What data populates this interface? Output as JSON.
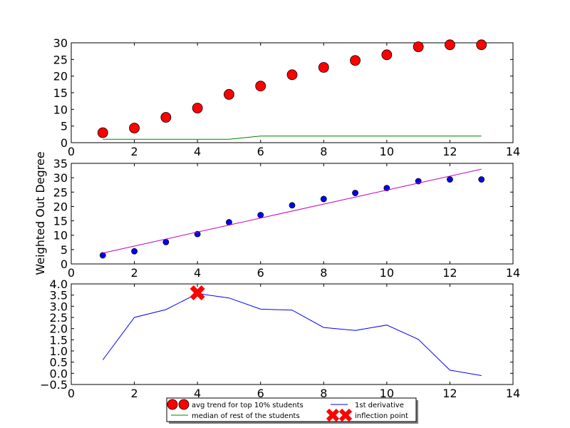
{
  "chart_data": [
    {
      "type": "scatter",
      "xlim": [
        0,
        14
      ],
      "ylim": [
        0,
        30
      ],
      "xticks": [
        "0",
        "2",
        "4",
        "6",
        "8",
        "10",
        "12",
        "14"
      ],
      "yticks": [
        "0",
        "5",
        "10",
        "15",
        "20",
        "25",
        "30"
      ],
      "grid": false,
      "series": [
        {
          "name": "avg trend for top 10% students",
          "type": "scatter",
          "color": "#ff0000",
          "x": [
            1,
            2,
            3,
            4,
            5,
            6,
            7,
            8,
            9,
            10,
            11,
            12,
            13
          ],
          "y": [
            3.0,
            4.4,
            7.6,
            10.4,
            14.5,
            17.0,
            20.4,
            22.6,
            24.7,
            26.4,
            28.8,
            29.4,
            29.4
          ]
        },
        {
          "name": "median of rest of the students",
          "type": "line",
          "color": "#008000",
          "x": [
            1,
            2,
            3,
            4,
            5,
            6,
            7,
            8,
            9,
            10,
            11,
            12,
            13
          ],
          "y": [
            1,
            1,
            1,
            1,
            1,
            2,
            2,
            2,
            2,
            2,
            2,
            2,
            2
          ]
        }
      ]
    },
    {
      "type": "scatter",
      "ylabel": "Weighted Out Degree",
      "xlim": [
        0,
        14
      ],
      "ylim": [
        0,
        35
      ],
      "xticks": [
        "0",
        "2",
        "4",
        "6",
        "8",
        "10",
        "12",
        "14"
      ],
      "yticks": [
        "0",
        "5",
        "10",
        "15",
        "20",
        "25",
        "30",
        "35"
      ],
      "grid": false,
      "series": [
        {
          "type": "scatter",
          "color": "#0000ff",
          "x": [
            1,
            2,
            3,
            4,
            5,
            6,
            7,
            8,
            9,
            10,
            11,
            12,
            13
          ],
          "y": [
            3.0,
            4.4,
            7.6,
            10.4,
            14.5,
            17.0,
            20.4,
            22.6,
            24.7,
            26.4,
            28.8,
            29.4,
            29.4
          ]
        },
        {
          "type": "line",
          "color": "#bf00bf",
          "x": [
            1,
            13
          ],
          "y": [
            3.8,
            33.0
          ]
        }
      ]
    },
    {
      "type": "line",
      "xlim": [
        0,
        14
      ],
      "ylim": [
        -0.5,
        4.0
      ],
      "xticks": [
        "0",
        "2",
        "4",
        "6",
        "8",
        "10",
        "12",
        "14"
      ],
      "yticks": [
        "−0.5",
        "0.0",
        "0.5",
        "1.0",
        "1.5",
        "2.0",
        "2.5",
        "3.0",
        "3.5",
        "4.0"
      ],
      "grid": false,
      "series": [
        {
          "name": "1st derivative",
          "type": "line",
          "color": "#0000ff",
          "x": [
            1,
            2,
            3,
            4,
            5,
            6,
            7,
            8,
            9,
            10,
            11,
            12,
            13
          ],
          "y": [
            0.6,
            2.5,
            2.85,
            3.57,
            3.37,
            2.87,
            2.83,
            2.05,
            1.92,
            2.16,
            1.52,
            0.14,
            -0.1
          ]
        },
        {
          "name": "inflection point",
          "type": "marker",
          "marker": "X",
          "color": "#ff0000",
          "x": [
            4
          ],
          "y": [
            3.6
          ]
        }
      ]
    }
  ],
  "legend": {
    "placement": "bottom-center",
    "entries": [
      "avg trend for top 10% students",
      "median of rest of the students",
      "1st derivative",
      "inflection point"
    ]
  }
}
